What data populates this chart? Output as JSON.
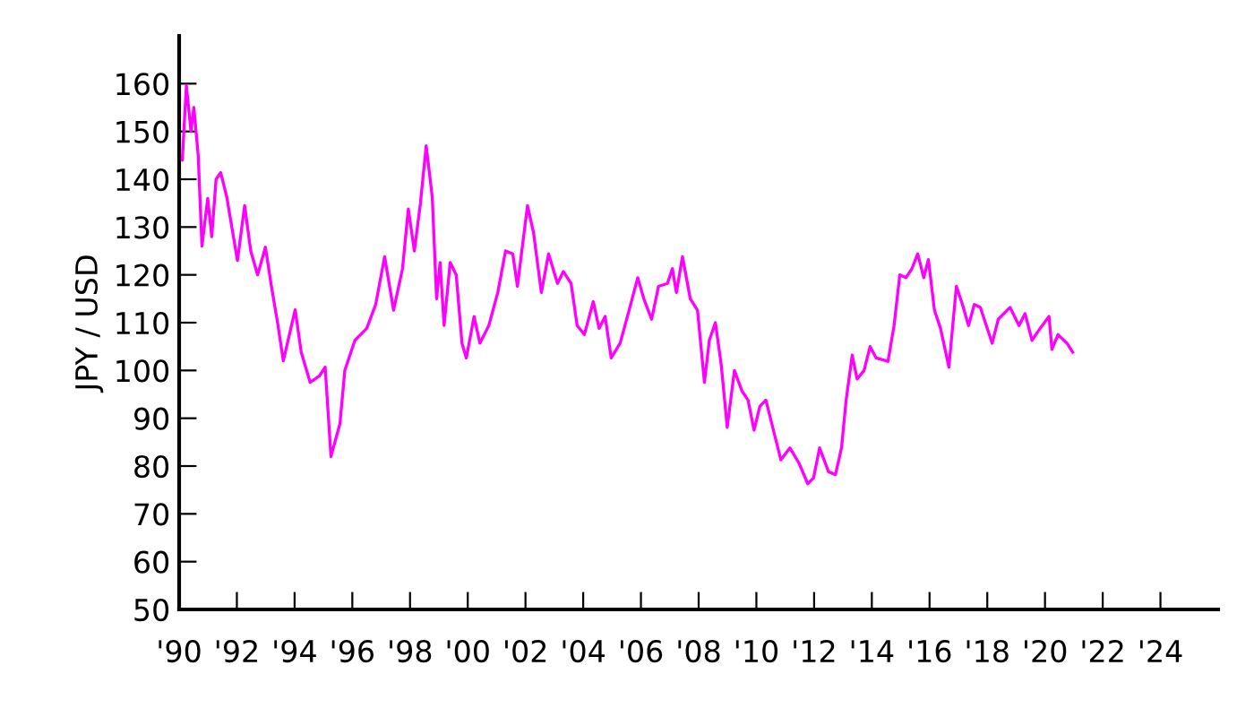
{
  "chart_data": {
    "type": "line",
    "ylabel": "JPY / USD",
    "x": [
      1990.0,
      1990.11,
      1990.25,
      1990.41,
      1990.51,
      1990.66,
      1990.79,
      1990.99,
      1991.13,
      1991.28,
      1991.44,
      1991.65,
      1992.02,
      1992.27,
      1992.48,
      1992.72,
      1992.99,
      1993.2,
      1993.41,
      1993.61,
      1994.02,
      1994.23,
      1994.54,
      1994.85,
      1995.06,
      1995.26,
      1995.57,
      1995.74,
      1996.09,
      1996.5,
      1996.81,
      1997.12,
      1997.43,
      1997.74,
      1997.94,
      1998.15,
      1998.36,
      1998.56,
      1998.77,
      1998.92,
      1999.04,
      1999.18,
      1999.39,
      1999.6,
      1999.8,
      1999.95,
      2000.22,
      2000.42,
      2000.73,
      2001.04,
      2001.31,
      2001.56,
      2001.72,
      2002.07,
      2002.28,
      2002.55,
      2002.8,
      2003.11,
      2003.31,
      2003.58,
      2003.79,
      2004.04,
      2004.35,
      2004.55,
      2004.76,
      2004.97,
      2005.28,
      2005.59,
      2005.89,
      2006.1,
      2006.37,
      2006.61,
      2006.92,
      2007.09,
      2007.23,
      2007.44,
      2007.71,
      2007.96,
      2008.2,
      2008.37,
      2008.58,
      2008.78,
      2008.99,
      2009.24,
      2009.5,
      2009.71,
      2009.92,
      2010.12,
      2010.33,
      2010.64,
      2010.85,
      2011.16,
      2011.47,
      2011.78,
      2011.98,
      2012.19,
      2012.5,
      2012.74,
      2012.95,
      2013.11,
      2013.32,
      2013.49,
      2013.73,
      2013.94,
      2014.15,
      2014.56,
      2014.77,
      2014.97,
      2015.18,
      2015.39,
      2015.59,
      2015.8,
      2015.96,
      2016.17,
      2016.38,
      2016.67,
      2016.93,
      2017.14,
      2017.35,
      2017.55,
      2017.76,
      2018.17,
      2018.38,
      2018.79,
      2019.1,
      2019.31,
      2019.55,
      2019.83,
      2020.14,
      2020.24,
      2020.45,
      2020.76,
      2020.96
    ],
    "series": [
      {
        "color": "#ff00ff",
        "values": [
          145,
          144,
          159.6,
          150,
          155,
          145,
          126,
          136,
          128,
          140,
          141.4,
          136.3,
          123,
          134.5,
          125,
          120,
          125.8,
          117.5,
          110,
          102,
          112.7,
          103.8,
          97.5,
          98.8,
          100.7,
          82,
          88.8,
          100,
          106.3,
          108.8,
          113.8,
          123.8,
          112.6,
          121.3,
          133.8,
          125,
          135,
          147,
          136.3,
          115,
          122.6,
          109.4,
          122.6,
          120,
          105.7,
          102.6,
          111.3,
          105.7,
          109.4,
          116.3,
          125,
          124.4,
          117.6,
          134.5,
          128.8,
          116.3,
          124.4,
          118.2,
          120.7,
          118.2,
          109.4,
          107.5,
          114.4,
          108.8,
          111.3,
          102.6,
          105.7,
          112.6,
          119.4,
          115,
          110.7,
          117.6,
          118.2,
          121.3,
          116.3,
          123.8,
          115,
          112.6,
          97.5,
          106.3,
          110,
          101.3,
          88.1,
          100,
          95.7,
          93.8,
          87.5,
          92.5,
          93.8,
          86.3,
          81.3,
          83.8,
          80.7,
          76.3,
          77.5,
          83.8,
          78.8,
          78.2,
          83.8,
          93.8,
          103.2,
          98.2,
          100,
          105,
          102.6,
          101.9,
          109.4,
          120,
          119.4,
          121.3,
          124.4,
          119.4,
          123.2,
          112.6,
          108.8,
          100.7,
          117.6,
          113.8,
          109.4,
          113.8,
          113.2,
          105.7,
          110.7,
          113.2,
          109.4,
          111.9,
          106.3,
          108.8,
          111.3,
          104.4,
          107.5,
          105.7,
          103.8
        ]
      }
    ],
    "xlim": [
      1990,
      2026
    ],
    "xticks": [
      {
        "value": 1990,
        "label": "'90"
      },
      {
        "value": 1992,
        "label": "'92"
      },
      {
        "value": 1994,
        "label": "'94"
      },
      {
        "value": 1996,
        "label": "'96"
      },
      {
        "value": 1998,
        "label": "'98"
      },
      {
        "value": 2000,
        "label": "'00"
      },
      {
        "value": 2002,
        "label": "'02"
      },
      {
        "value": 2004,
        "label": "'04"
      },
      {
        "value": 2006,
        "label": "'06"
      },
      {
        "value": 2008,
        "label": "'08"
      },
      {
        "value": 2010,
        "label": "'10"
      },
      {
        "value": 2012,
        "label": "'12"
      },
      {
        "value": 2014,
        "label": "'14"
      },
      {
        "value": 2016,
        "label": "'16"
      },
      {
        "value": 2018,
        "label": "'18"
      },
      {
        "value": 2020,
        "label": "'20"
      },
      {
        "value": 2022,
        "label": "'22"
      },
      {
        "value": 2024,
        "label": "'24"
      }
    ],
    "ylim": [
      50,
      170
    ],
    "yticks": [
      50,
      60,
      70,
      80,
      90,
      100,
      110,
      120,
      130,
      140,
      150,
      160
    ],
    "grid": false,
    "legend": false,
    "marker": "none",
    "line_style": "solid"
  }
}
